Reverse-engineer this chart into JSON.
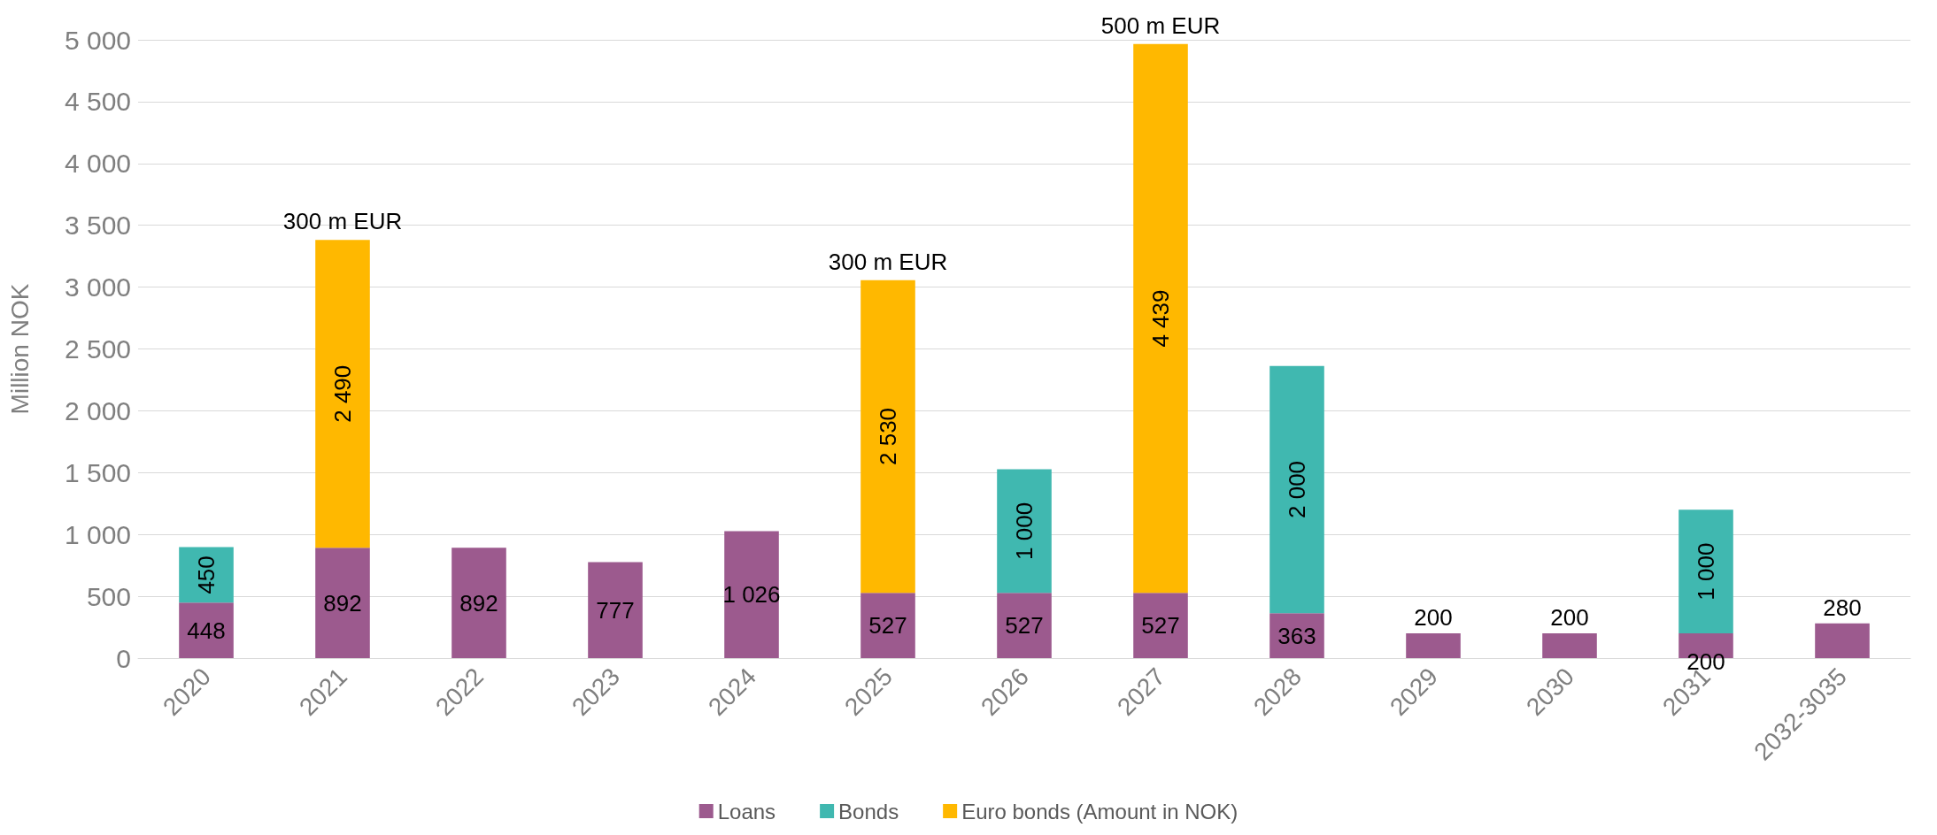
{
  "chart_data": {
    "type": "bar",
    "stacked": true,
    "ylabel": "Million NOK",
    "categories": [
      "2020",
      "2021",
      "2022",
      "2023",
      "2024",
      "2025",
      "2026",
      "2027",
      "2028",
      "2029",
      "2030",
      "2031",
      "2032-3035"
    ],
    "series": [
      {
        "name": "Loans",
        "color": "#9c5a8e",
        "values": [
          448,
          892,
          892,
          777,
          1026,
          527,
          527,
          527,
          363,
          200,
          200,
          200,
          280
        ],
        "value_labels": [
          "448",
          "892",
          "892",
          "777",
          "1 026",
          "527",
          "527",
          "527",
          "363",
          "200",
          "200",
          "200",
          "280"
        ]
      },
      {
        "name": "Bonds",
        "color": "#40b8b0",
        "values": [
          450,
          null,
          null,
          null,
          null,
          null,
          1000,
          null,
          2000,
          null,
          null,
          1000,
          null
        ],
        "value_labels": [
          "450",
          null,
          null,
          null,
          null,
          null,
          "1 000",
          null,
          "2 000",
          null,
          null,
          "1 000",
          null
        ]
      },
      {
        "name": "Euro bonds (Amount in NOK)",
        "color": "#ffb800",
        "values": [
          null,
          2490,
          null,
          null,
          null,
          2530,
          null,
          4439,
          null,
          null,
          null,
          null,
          null
        ],
        "value_labels": [
          null,
          "2 490",
          null,
          null,
          null,
          "2 530",
          null,
          "4 439",
          null,
          null,
          null,
          null,
          null
        ]
      }
    ],
    "ylim": [
      0,
      5000
    ],
    "yticks": [
      0,
      500,
      {
        "value": 1000,
        "label": "1 000"
      },
      {
        "value": 1500,
        "label": "1 500"
      },
      {
        "value": 2000,
        "label": "2 000"
      },
      {
        "value": 2500,
        "label": "2 500"
      },
      {
        "value": 3000,
        "label": "3 000"
      },
      {
        "value": 3500,
        "label": "3 500"
      },
      {
        "value": 4000,
        "label": "4 000"
      },
      {
        "value": 4500,
        "label": "4 500"
      },
      {
        "value": 5000,
        "label": "5 000"
      }
    ],
    "annotations": [
      {
        "text": "300 m EUR",
        "x": "2021",
        "y": 3382
      },
      {
        "text": "300 m EUR",
        "x": "2025",
        "y": 3057
      },
      {
        "text": "500 m EUR",
        "x": "2027",
        "y": 4966
      }
    ],
    "grid": "y",
    "legend": "bottom"
  }
}
